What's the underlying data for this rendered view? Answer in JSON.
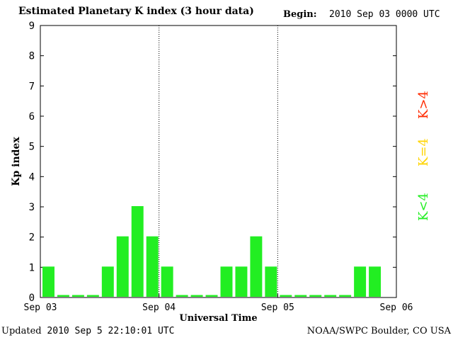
{
  "header": {
    "title": "Estimated Planetary K index (3 hour data)",
    "begin_label": "Begin:",
    "begin_value": "2010 Sep 03 0000 UTC"
  },
  "footer": {
    "updated_label": "Updated",
    "updated_value": "2010 Sep  5 22:10:01 UTC",
    "credit": "NOAA/SWPC Boulder, CO USA"
  },
  "legend": {
    "items": [
      {
        "label": "K>4",
        "color": "#ff2a00"
      },
      {
        "label": "K=4",
        "color": "#ffd400"
      },
      {
        "label": "K<4",
        "color": "#22ee22"
      }
    ]
  },
  "chart_data": {
    "type": "bar",
    "title": "Estimated Planetary K index (3 hour data)",
    "xlabel": "Universal Time",
    "ylabel": "Kp index",
    "ylim": [
      0,
      9
    ],
    "yticks": [
      0,
      1,
      2,
      3,
      4,
      5,
      6,
      7,
      8,
      9
    ],
    "xticks": [
      "Sep 03",
      "Sep 04",
      "Sep 05",
      "Sep 06"
    ],
    "bar_color": "#22ee22",
    "values": [
      1,
      0,
      0,
      0,
      1,
      2,
      3,
      2,
      1,
      0,
      0,
      0,
      1,
      1,
      2,
      1,
      0,
      0,
      0,
      0,
      0,
      1,
      1
    ]
  }
}
